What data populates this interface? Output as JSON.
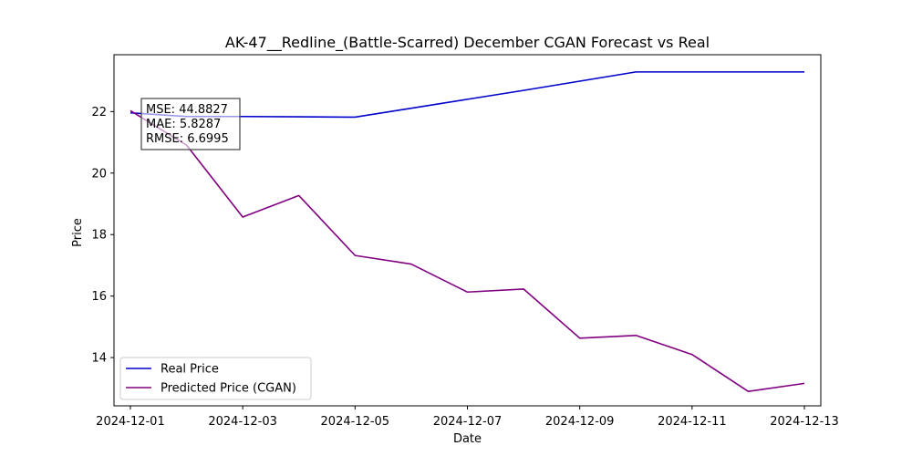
{
  "chart_data": {
    "type": "line",
    "title": "AK-47__Redline_(Battle-Scarred) December CGAN Forecast vs Real",
    "xlabel": "Date",
    "ylabel": "Price",
    "x": [
      "2024-12-01",
      "2024-12-02",
      "2024-12-03",
      "2024-12-04",
      "2024-12-05",
      "2024-12-06",
      "2024-12-07",
      "2024-12-08",
      "2024-12-09",
      "2024-12-10",
      "2024-12-11",
      "2024-12-12",
      "2024-12-13"
    ],
    "x_tick_labels": [
      "2024-12-01",
      "2024-12-03",
      "2024-12-05",
      "2024-12-07",
      "2024-12-09",
      "2024-12-11",
      "2024-12-13"
    ],
    "y_ticks": [
      14,
      16,
      18,
      20,
      22
    ],
    "xlim": [
      "2024-11-30T17:00",
      "2024-12-13T07:00"
    ],
    "ylim": [
      12.43,
      23.85
    ],
    "grid": false,
    "legend_position": "lower-left",
    "series": [
      {
        "name": "Real Price",
        "color": "#0000cc",
        "values": [
          21.96,
          21.84,
          21.84,
          21.83,
          21.82,
          22.11,
          22.4,
          22.69,
          22.99,
          23.29,
          23.29,
          23.29,
          23.29
        ]
      },
      {
        "name": "Predicted Price (CGAN)",
        "color": "#800080",
        "values": [
          22.03,
          20.91,
          18.57,
          19.27,
          17.32,
          17.04,
          16.13,
          16.23,
          14.63,
          14.72,
          14.1,
          12.9,
          13.16
        ]
      }
    ],
    "annotations": {
      "metrics": [
        "MSE: 44.8827",
        "MAE: 5.8287",
        "RMSE: 6.6995"
      ],
      "position": "top-left"
    }
  }
}
